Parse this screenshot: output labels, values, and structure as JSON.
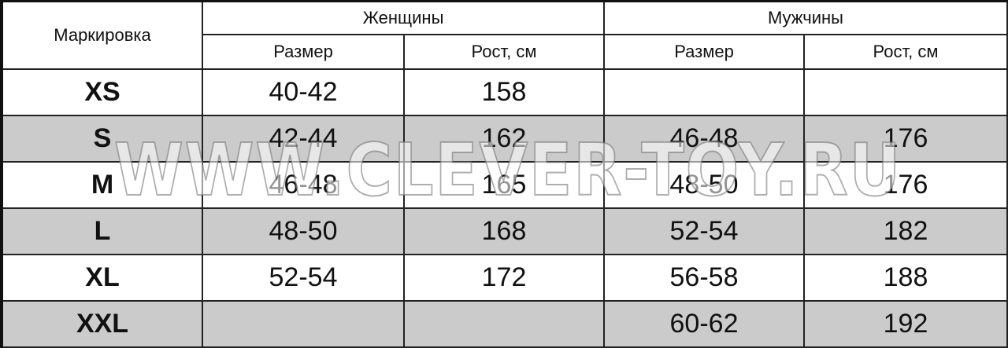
{
  "header": {
    "marking": "Маркировка",
    "women": "Женщины",
    "men": "Мужчины",
    "size": "Размер",
    "height": "Рост, см"
  },
  "rows": [
    {
      "mark": "XS",
      "w_size": "40-42",
      "w_height": "158",
      "m_size": "",
      "m_height": ""
    },
    {
      "mark": "S",
      "w_size": "42-44",
      "w_height": "162",
      "m_size": "46-48",
      "m_height": "176"
    },
    {
      "mark": "M",
      "w_size": "46-48",
      "w_height": "165",
      "m_size": "48-50",
      "m_height": "176"
    },
    {
      "mark": "L",
      "w_size": "48-50",
      "w_height": "168",
      "m_size": "52-54",
      "m_height": "182"
    },
    {
      "mark": "XL",
      "w_size": "52-54",
      "w_height": "172",
      "m_size": "56-58",
      "m_height": "188"
    },
    {
      "mark": "XXL",
      "w_size": "",
      "w_height": "",
      "m_size": "60-62",
      "m_height": "192"
    }
  ],
  "watermark": "WWW.CLEVER-TOY.RU",
  "colors": {
    "stripe": "#cbcbcb",
    "border": "#222222"
  }
}
